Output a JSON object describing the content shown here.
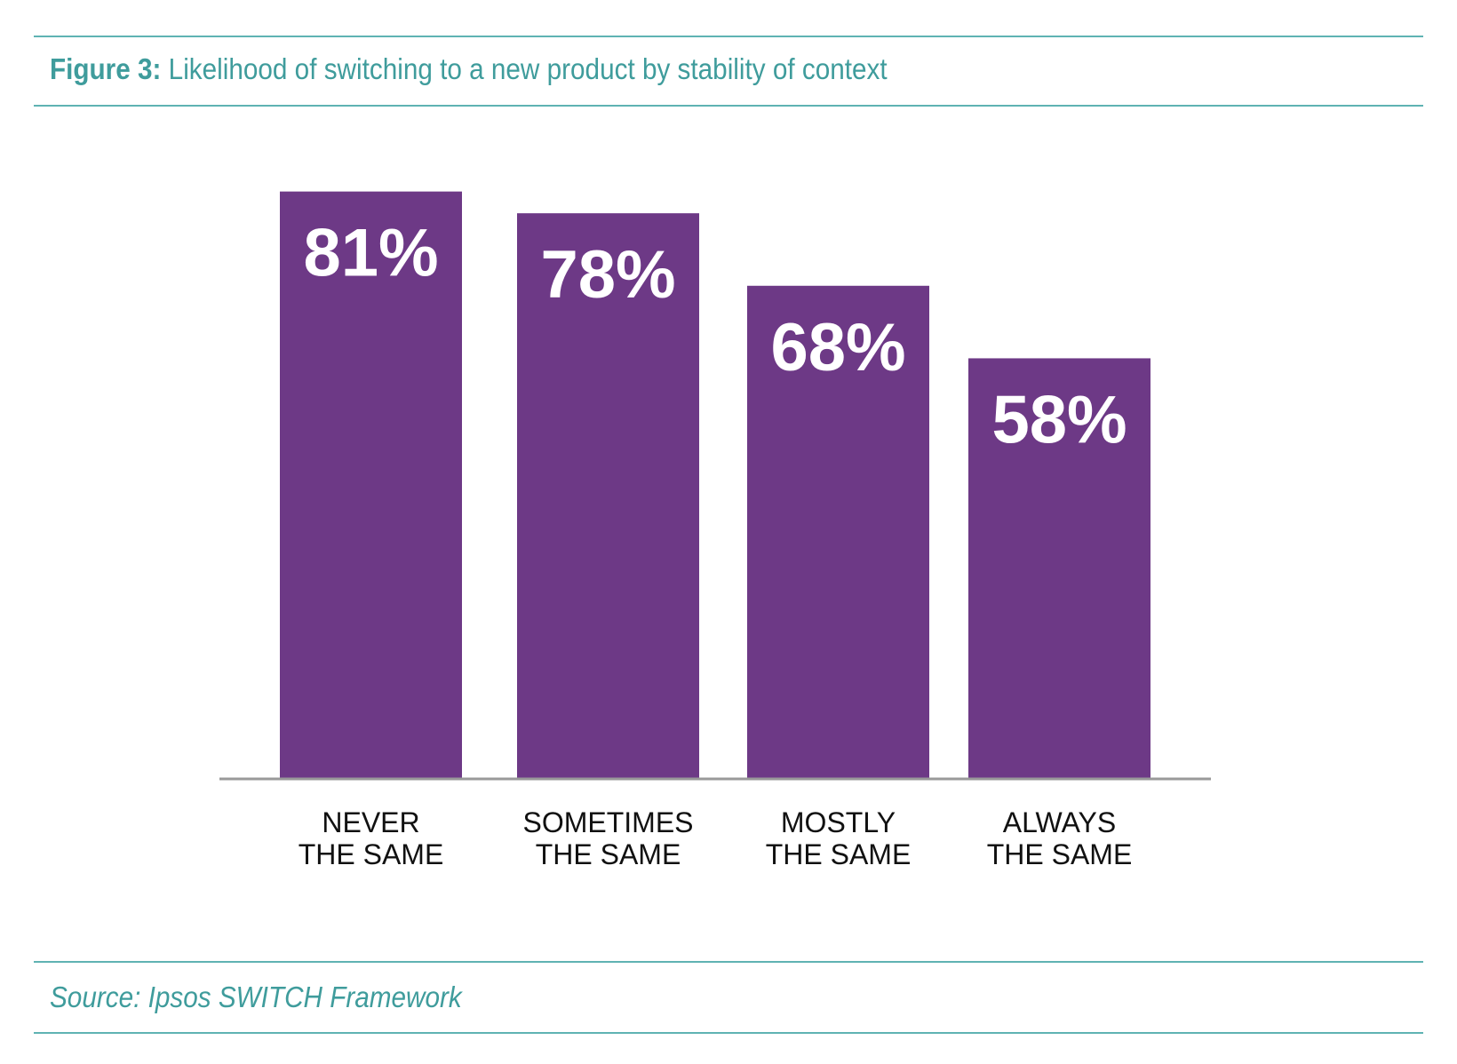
{
  "figure": {
    "title_lead": "Figure 3:",
    "title_text": " Likelihood of switching to a new product by stability of context",
    "source": "Source: Ipsos SWITCH Framework"
  },
  "colors": {
    "bar": "#6d3986",
    "accent": "#3f9c9c",
    "rule": "#5fb3b3",
    "baseline": "#999999"
  },
  "chart_data": {
    "type": "bar",
    "title": "Likelihood of switching to a new product by stability of context",
    "xlabel": "",
    "ylabel": "",
    "grid": false,
    "legend": "none",
    "ylim": [
      0,
      90
    ],
    "categories": [
      [
        "NEVER",
        "THE SAME"
      ],
      [
        "SOMETIMES",
        "THE SAME"
      ],
      [
        "MOSTLY",
        "THE SAME"
      ],
      [
        "ALWAYS",
        "THE SAME"
      ]
    ],
    "values": [
      81,
      78,
      68,
      58
    ],
    "value_labels": [
      "81%",
      "78%",
      "68%",
      "58%"
    ]
  }
}
